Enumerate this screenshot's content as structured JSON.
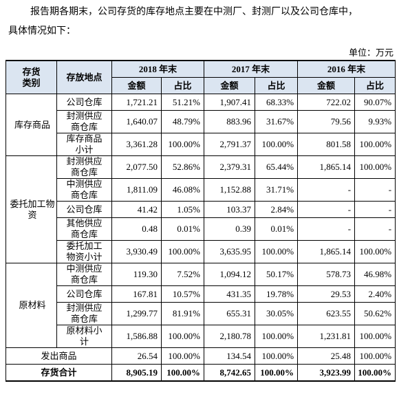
{
  "intro": [
    "报告期各期末，公司存货的库存地点主要在中测厂、封测厂以及公司仓库中，",
    "具体情况如下："
  ],
  "unit": "单位：万元",
  "table": {
    "header": {
      "category": "存货类别",
      "location": "存放地点",
      "years": [
        "2018 年末",
        "2017 年末",
        "2016 年末"
      ],
      "sub": [
        "金额",
        "占比",
        "金额",
        "占比",
        "金额",
        "占比"
      ]
    },
    "groups": [
      {
        "category": "库存商品",
        "rows": [
          {
            "location": "公司仓库",
            "cells": [
              "1,721.21",
              "51.21%",
              "1,907.41",
              "68.33%",
              "722.02",
              "90.07%"
            ]
          },
          {
            "location": "封测供应商仓库",
            "cells": [
              "1,640.07",
              "48.79%",
              "883.96",
              "31.67%",
              "79.56",
              "9.93%"
            ]
          },
          {
            "location": "库存商品小计",
            "cells": [
              "3,361.28",
              "100.00%",
              "2,791.37",
              "100.00%",
              "801.58",
              "100.00%"
            ]
          }
        ]
      },
      {
        "category": "委托加工物资",
        "rows": [
          {
            "location": "封测供应商仓库",
            "cells": [
              "2,077.50",
              "52.86%",
              "2,379.31",
              "65.44%",
              "1,865.14",
              "100.00%"
            ]
          },
          {
            "location": "中测供应商仓库",
            "cells": [
              "1,811.09",
              "46.08%",
              "1,152.88",
              "31.71%",
              "-",
              "-"
            ]
          },
          {
            "location": "公司仓库",
            "cells": [
              "41.42",
              "1.05%",
              "103.37",
              "2.84%",
              "-",
              "-"
            ]
          },
          {
            "location": "其他供应商仓库",
            "cells": [
              "0.48",
              "0.01%",
              "0.39",
              "0.01%",
              "-",
              "-"
            ]
          },
          {
            "location": "委托加工物资小计",
            "cells": [
              "3,930.49",
              "100.00%",
              "3,635.95",
              "100.00%",
              "1,865.14",
              "100.00%"
            ]
          }
        ]
      },
      {
        "category": "原材料",
        "rows": [
          {
            "location": "中测供应商仓库",
            "cells": [
              "119.30",
              "7.52%",
              "1,094.12",
              "50.17%",
              "578.73",
              "46.98%"
            ]
          },
          {
            "location": "公司仓库",
            "cells": [
              "167.81",
              "10.57%",
              "431.35",
              "19.78%",
              "29.53",
              "2.40%"
            ]
          },
          {
            "location": "封测供应商仓库",
            "cells": [
              "1,299.77",
              "81.91%",
              "655.31",
              "30.05%",
              "623.55",
              "50.62%"
            ]
          },
          {
            "location": "原材料小计",
            "cells": [
              "1,586.88",
              "100.00%",
              "2,180.78",
              "100.00%",
              "1,231.81",
              "100.00%"
            ]
          }
        ]
      }
    ],
    "totals": [
      {
        "label": "发出商品",
        "cells": [
          "26.54",
          "100.00%",
          "134.54",
          "100.00%",
          "25.48",
          "100.00%"
        ]
      },
      {
        "label": "存货合计",
        "cells": [
          "8,905.19",
          "100.00%",
          "8,742.65",
          "100.00%",
          "3,923.99",
          "100.00%"
        ]
      }
    ]
  }
}
